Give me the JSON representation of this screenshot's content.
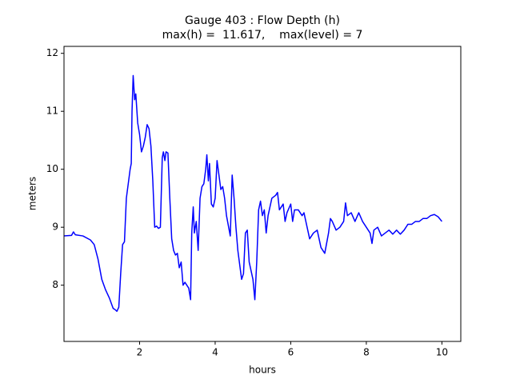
{
  "chart_data": {
    "type": "line",
    "title": "Gauge 403 : Flow Depth (h)",
    "subtitle": "max(h) =  11.617,    max(level) = 7",
    "x_label": "hours",
    "y_label": "meters",
    "xlim": [
      0,
      10.5
    ],
    "ylim": [
      7.03,
      12.12
    ],
    "xticks": [
      2,
      4,
      6,
      8,
      10
    ],
    "yticks": [
      8,
      9,
      10,
      11,
      12
    ],
    "grid": false,
    "series": [
      {
        "name": "h",
        "color": "#0000ff",
        "x": [
          0,
          0.2,
          0.25,
          0.3,
          0.5,
          0.7,
          0.8,
          0.9,
          1.0,
          1.1,
          1.2,
          1.3,
          1.35,
          1.4,
          1.45,
          1.5,
          1.55,
          1.6,
          1.65,
          1.75,
          1.78,
          1.8,
          1.83,
          1.87,
          1.9,
          1.95,
          2.0,
          2.05,
          2.1,
          2.15,
          2.2,
          2.25,
          2.3,
          2.35,
          2.4,
          2.45,
          2.5,
          2.55,
          2.6,
          2.63,
          2.67,
          2.7,
          2.75,
          2.8,
          2.85,
          2.9,
          2.95,
          3.0,
          3.05,
          3.1,
          3.15,
          3.2,
          3.3,
          3.35,
          3.38,
          3.42,
          3.45,
          3.5,
          3.55,
          3.6,
          3.65,
          3.7,
          3.75,
          3.78,
          3.82,
          3.85,
          3.9,
          3.95,
          4.0,
          4.05,
          4.1,
          4.15,
          4.2,
          4.25,
          4.3,
          4.4,
          4.45,
          4.5,
          4.55,
          4.6,
          4.7,
          4.75,
          4.8,
          4.85,
          4.9,
          5.0,
          5.05,
          5.1,
          5.15,
          5.2,
          5.25,
          5.3,
          5.35,
          5.4,
          5.5,
          5.6,
          5.65,
          5.7,
          5.8,
          5.85,
          5.9,
          6.0,
          6.05,
          6.1,
          6.2,
          6.3,
          6.35,
          6.4,
          6.5,
          6.6,
          6.7,
          6.8,
          6.9,
          7.0,
          7.05,
          7.1,
          7.2,
          7.3,
          7.4,
          7.45,
          7.5,
          7.6,
          7.7,
          7.8,
          7.9,
          8.0,
          8.1,
          8.15,
          8.2,
          8.3,
          8.4,
          8.5,
          8.6,
          8.7,
          8.8,
          8.9,
          9.0,
          9.1,
          9.2,
          9.3,
          9.4,
          9.5,
          9.6,
          9.7,
          9.8,
          9.9,
          10.0
        ],
        "values": [
          8.85,
          8.86,
          8.92,
          8.87,
          8.85,
          8.78,
          8.7,
          8.45,
          8.1,
          7.92,
          7.78,
          7.6,
          7.58,
          7.55,
          7.62,
          8.2,
          8.7,
          8.75,
          9.5,
          10.0,
          10.1,
          11.0,
          11.617,
          11.2,
          11.3,
          10.8,
          10.6,
          10.3,
          10.4,
          10.55,
          10.77,
          10.7,
          10.4,
          9.8,
          9.0,
          9.02,
          8.98,
          9.0,
          10.2,
          10.3,
          10.15,
          10.3,
          10.28,
          9.5,
          8.8,
          8.6,
          8.52,
          8.55,
          8.3,
          8.4,
          8.0,
          8.05,
          7.95,
          7.75,
          8.9,
          9.35,
          8.9,
          9.1,
          8.6,
          9.5,
          9.7,
          9.75,
          10.0,
          10.25,
          9.8,
          10.1,
          9.4,
          9.35,
          9.5,
          10.15,
          9.9,
          9.65,
          9.7,
          9.5,
          9.2,
          8.85,
          9.9,
          9.5,
          9.0,
          8.6,
          8.1,
          8.2,
          8.9,
          8.95,
          8.4,
          8.1,
          7.75,
          8.4,
          9.3,
          9.45,
          9.2,
          9.3,
          8.9,
          9.2,
          9.5,
          9.55,
          9.6,
          9.3,
          9.4,
          9.1,
          9.25,
          9.4,
          9.1,
          9.3,
          9.3,
          9.2,
          9.25,
          9.1,
          8.8,
          8.9,
          8.95,
          8.65,
          8.55,
          8.9,
          9.15,
          9.1,
          8.95,
          9.0,
          9.1,
          9.42,
          9.2,
          9.25,
          9.1,
          9.25,
          9.1,
          9.0,
          8.9,
          8.72,
          8.95,
          9.0,
          8.85,
          8.9,
          8.95,
          8.88,
          8.95,
          8.88,
          8.95,
          9.05,
          9.05,
          9.1,
          9.1,
          9.15,
          9.15,
          9.2,
          9.22,
          9.18,
          9.1
        ]
      }
    ]
  }
}
